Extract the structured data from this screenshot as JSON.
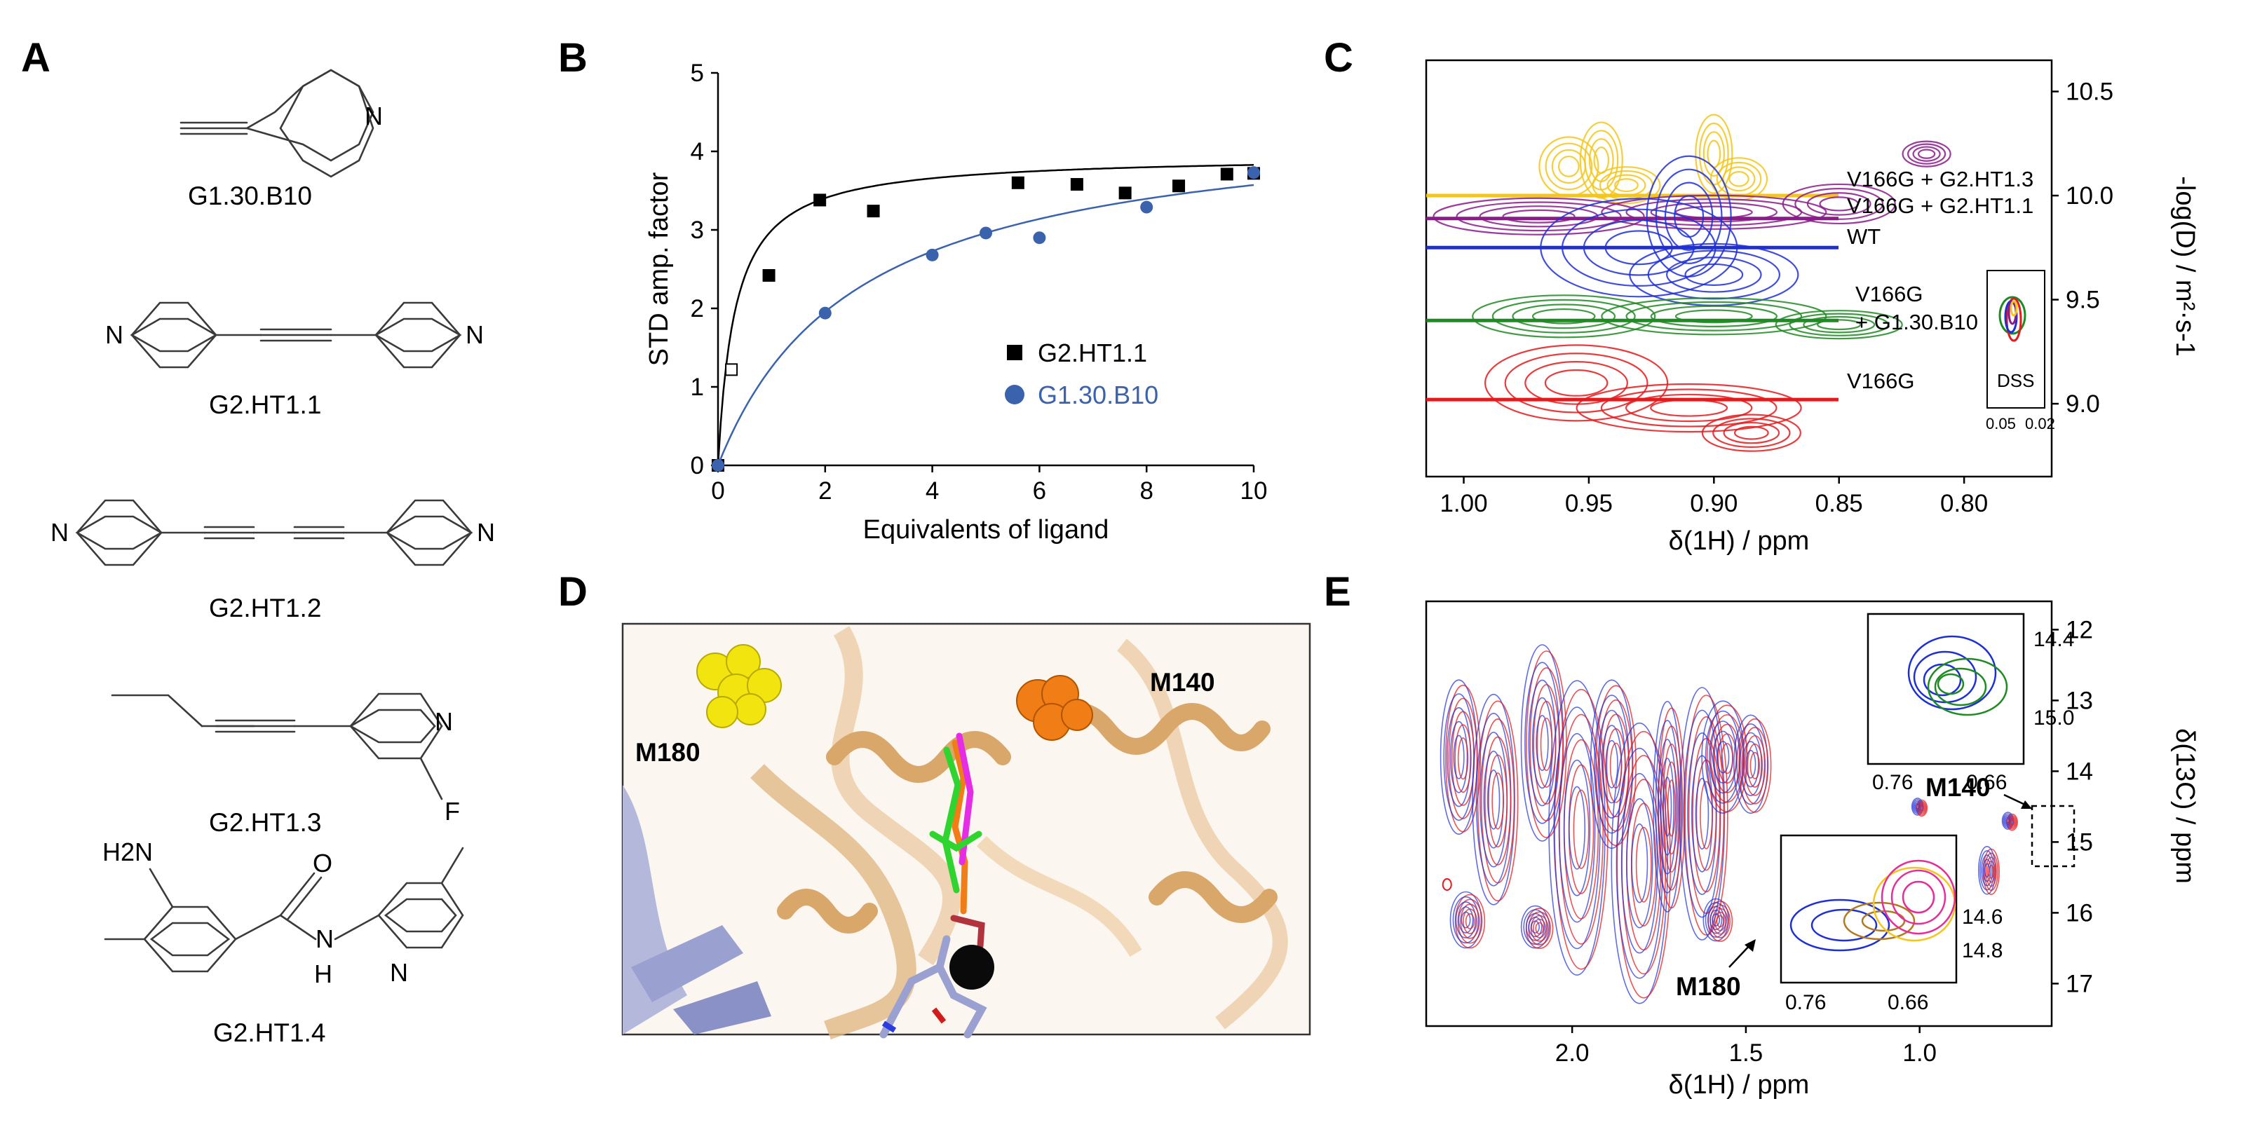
{
  "panels": {
    "A": "A",
    "B": "B",
    "C": "C",
    "D": "D",
    "E": "E"
  },
  "panel_a": {
    "compounds": [
      "G1.30.B10",
      "G2.HT1.1",
      "G2.HT1.2",
      "G2.HT1.3",
      "G2.HT1.4"
    ],
    "atoms": {
      "N": "N",
      "F": "F",
      "O": "O",
      "H": "H",
      "H2N": "H2N"
    }
  },
  "chart_data": [
    {
      "id": "B",
      "type": "scatter",
      "xlabel": "Equivalents of ligand",
      "ylabel": "STD amp. factor",
      "xlim": [
        0,
        10
      ],
      "ylim": [
        0,
        5
      ],
      "xticks": [
        "0",
        "2",
        "4",
        "6",
        "8",
        "10"
      ],
      "yticks": [
        "0",
        "1",
        "2",
        "3",
        "4",
        "5"
      ],
      "series": [
        {
          "name": "G2.HT1.1",
          "color": "#000000",
          "marker": "square",
          "points": [
            [
              0,
              0
            ],
            [
              0.25,
              1.22
            ],
            [
              0.95,
              2.42
            ],
            [
              1.9,
              3.38
            ],
            [
              2.9,
              3.24
            ],
            [
              5.6,
              3.6
            ],
            [
              6.7,
              3.58
            ],
            [
              7.6,
              3.47
            ],
            [
              8.6,
              3.56
            ],
            [
              9.5,
              3.71
            ],
            [
              10.0,
              3.72
            ]
          ],
          "fit": {
            "model": "hyperbolic",
            "bmax": 3.95,
            "kd": 0.32
          }
        },
        {
          "name": "G1.30.B10",
          "color": "#3b62ad",
          "marker": "circle",
          "points": [
            [
              0,
              0
            ],
            [
              2.0,
              1.94
            ],
            [
              4.0,
              2.68
            ],
            [
              5.0,
              2.96
            ],
            [
              6.0,
              2.9
            ],
            [
              8.0,
              3.29
            ],
            [
              10.0,
              3.73
            ]
          ],
          "fit": {
            "model": "hyperbolic",
            "bmax": 4.5,
            "kd": 2.6
          }
        }
      ]
    },
    {
      "id": "C",
      "type": "contour",
      "xlabel": "δ(1H) / ppm",
      "ylabel": "-log(D) / m²·s-1",
      "x_ticks": [
        "1.00",
        "0.95",
        "0.90",
        "0.85",
        "0.80"
      ],
      "y_ticks": [
        "9.0",
        "9.5",
        "10.0",
        "10.5"
      ],
      "xlim": [
        1.015,
        0.765
      ],
      "ylim": [
        8.65,
        10.65
      ],
      "series": [
        {
          "name": "V166G + G2.HT1.3",
          "color": "#f5c518",
          "level": 10.0
        },
        {
          "name": "V166G + G2.HT1.1",
          "color": "#8b1a8b",
          "level": 9.89
        },
        {
          "name": "WT",
          "color": "#1e2fd6",
          "level": 9.75
        },
        {
          "name": "V166G + G1.30.B10",
          "color": "#1e8a22",
          "level": 9.4
        },
        {
          "name": "V166G",
          "color": "#e41a1c",
          "level": 9.02
        }
      ],
      "inset": {
        "label": "DSS",
        "x_ticks": [
          "0.05",
          "0.02"
        ]
      }
    },
    {
      "id": "E",
      "type": "contour",
      "xlabel": "δ(1H) / ppm",
      "ylabel": "δ(13C) / ppm",
      "x_ticks": [
        "2.0",
        "1.5",
        "1.0"
      ],
      "y_ticks": [
        "12",
        "13",
        "14",
        "15",
        "16",
        "17"
      ],
      "xlim": [
        2.42,
        0.62
      ],
      "ylim": [
        11.6,
        17.6
      ],
      "annotations": [
        "M140",
        "M180"
      ],
      "inset_top": {
        "x_ticks": [
          "0.76",
          "0.66"
        ],
        "y_ticks": [
          "14.4",
          "15.0"
        ]
      },
      "inset_bottom": {
        "x_ticks": [
          "0.76",
          "0.66"
        ],
        "y_ticks": [
          "14.6",
          "14.8"
        ]
      }
    }
  ],
  "panel_d": {
    "labels": [
      "M180",
      "M140"
    ]
  }
}
